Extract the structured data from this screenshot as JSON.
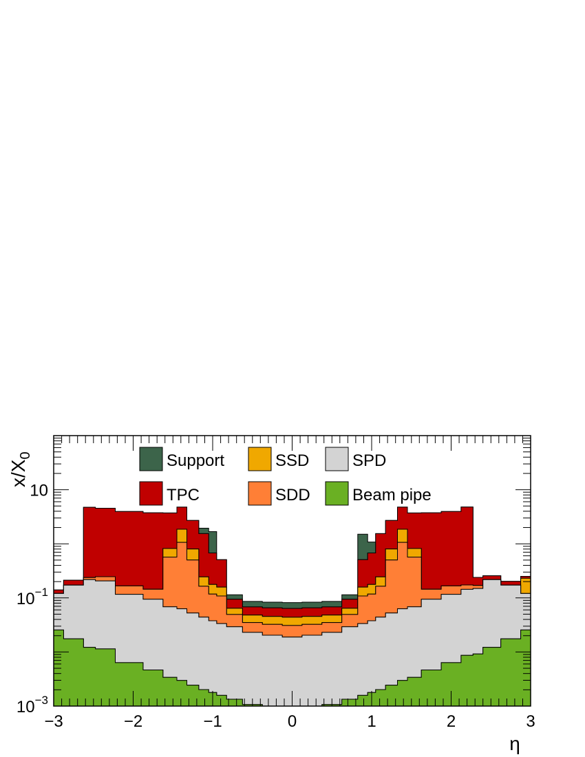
{
  "chart_data": {
    "type": "area",
    "stacked": true,
    "xlabel": "η",
    "ylabel": "x/X",
    "ylabel_sub": "0",
    "xlim": [
      -3,
      3
    ],
    "ylim": [
      0.001,
      100
    ],
    "log_y": true,
    "grid": false,
    "legend_position": "top",
    "x_ticks": [
      {
        "value": -3,
        "label": "−3"
      },
      {
        "value": -2,
        "label": "−2"
      },
      {
        "value": -1,
        "label": "−1"
      },
      {
        "value": 0,
        "label": "0"
      },
      {
        "value": 1,
        "label": "1"
      },
      {
        "value": 2,
        "label": "2"
      },
      {
        "value": 3,
        "label": "3"
      }
    ],
    "y_ticks": [
      {
        "value": 0.001,
        "base": "10",
        "exp": "−3"
      },
      {
        "value": 0.1,
        "base": "10",
        "exp": "−1"
      },
      {
        "value": 10,
        "base": "10",
        "exp": ""
      }
    ],
    "x": [
      -3.0,
      -2.75,
      -2.5,
      -2.45,
      -2.0,
      -1.75,
      -1.5,
      -1.4,
      -1.25,
      -1.1,
      -1.0,
      -0.9,
      -0.75,
      -0.5,
      -0.25,
      0.0,
      0.25,
      0.5,
      0.75,
      0.9,
      1.0,
      1.1,
      1.25,
      1.4,
      1.5,
      1.75,
      2.0,
      2.25,
      2.3,
      2.5,
      2.75,
      3.0
    ],
    "series": [
      {
        "name": "Beam pipe",
        "color": "#6ab023",
        "values": [
          0.0255,
          0.0175,
          0.0122,
          0.0114,
          0.00635,
          0.00465,
          0.0034,
          0.00298,
          0.00244,
          0.00202,
          0.00178,
          0.00158,
          0.00134,
          0.00107,
          0.00093,
          0.00089,
          0.00093,
          0.00107,
          0.00134,
          0.00158,
          0.00178,
          0.00202,
          0.00244,
          0.00298,
          0.0034,
          0.00465,
          0.00635,
          0.0087,
          0.0092,
          0.0122,
          0.0175,
          0.0255
        ]
      },
      {
        "name": "SPD",
        "color": "#d3d3d3",
        "values": [
          0.095,
          0.155,
          0.205,
          0.195,
          0.11,
          0.09,
          0.065,
          0.06,
          0.05,
          0.042,
          0.036,
          0.032,
          0.028,
          0.022,
          0.0195,
          0.018,
          0.0195,
          0.022,
          0.028,
          0.032,
          0.036,
          0.042,
          0.05,
          0.06,
          0.065,
          0.09,
          0.11,
          0.135,
          0.14,
          0.205,
          0.155,
          0.095
        ]
      },
      {
        "name": "SDD",
        "color": "#ff7f36",
        "values": [
          0.0,
          0.0,
          0.02,
          0.04,
          0.05,
          0.05,
          0.5,
          1.0,
          0.45,
          0.12,
          0.08,
          0.075,
          0.02,
          0.012,
          0.012,
          0.012,
          0.012,
          0.012,
          0.02,
          0.075,
          0.08,
          0.12,
          0.45,
          1.0,
          0.5,
          0.05,
          0.05,
          0.03,
          0.02,
          0.0,
          0.0,
          0.0
        ]
      },
      {
        "name": "SSD",
        "color": "#f0a800",
        "values": [
          0.0,
          0.0,
          0.0,
          0.0,
          0.0,
          0.0,
          0.25,
          0.8,
          0.3,
          0.08,
          0.06,
          0.05,
          0.015,
          0.013,
          0.013,
          0.013,
          0.013,
          0.013,
          0.015,
          0.05,
          0.06,
          0.08,
          0.3,
          0.8,
          0.25,
          0.0,
          0.0,
          0.0,
          0.0,
          0.0,
          0.0,
          0.11
        ]
      },
      {
        "name": "TPC",
        "color": "#c00000",
        "values": [
          0.02,
          0.04,
          4.5,
          4.3,
          3.8,
          3.6,
          2.9,
          2.9,
          1.9,
          1.3,
          0.5,
          0.35,
          0.03,
          0.02,
          0.02,
          0.02,
          0.02,
          0.02,
          0.03,
          0.35,
          0.5,
          1.3,
          1.9,
          2.9,
          2.9,
          3.6,
          3.8,
          4.6,
          0.07,
          0.04,
          0.03,
          0.02
        ]
      },
      {
        "name": "Support",
        "color": "#3c644a",
        "values": [
          0.0,
          0.0,
          0.0,
          0.0,
          0.0,
          0.0,
          0.0,
          0.0,
          0.0,
          0.4,
          1.0,
          0.0,
          0.02,
          0.018,
          0.018,
          0.018,
          0.018,
          0.018,
          0.02,
          1.0,
          0.4,
          0.0,
          0.0,
          0.0,
          0.0,
          0.0,
          0.0,
          0.0,
          0.0,
          0.0,
          0.0,
          0.0
        ]
      }
    ],
    "legend": [
      {
        "name": "Support",
        "color": "#3c644a"
      },
      {
        "name": "SSD",
        "color": "#f0a800"
      },
      {
        "name": "SPD",
        "color": "#d3d3d3"
      },
      {
        "name": "TPC",
        "color": "#c00000"
      },
      {
        "name": "SDD",
        "color": "#ff7f36"
      },
      {
        "name": "Beam pipe",
        "color": "#6ab023"
      }
    ]
  }
}
